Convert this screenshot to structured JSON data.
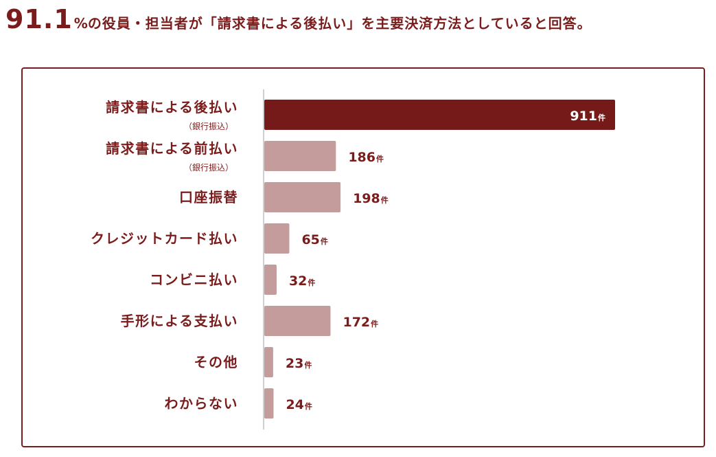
{
  "headline": {
    "number": "91.1",
    "unit": "%",
    "text": "の役員・担当者が「請求書による後払い」を主要決済方法としていると回答。"
  },
  "colors": {
    "accent": "#751919",
    "bar_primary": "#751919",
    "bar_secondary": "#c49c9c",
    "text": "#7a1c1c"
  },
  "chart_data": {
    "type": "bar",
    "orientation": "horizontal",
    "unit_suffix": "件",
    "categories": [
      {
        "label": "請求書による後払い",
        "sublabel": "（銀行振込）",
        "value": 911,
        "highlight": true
      },
      {
        "label": "請求書による前払い",
        "sublabel": "（銀行振込）",
        "value": 186,
        "highlight": false
      },
      {
        "label": "口座振替",
        "sublabel": "",
        "value": 198,
        "highlight": false
      },
      {
        "label": "クレジットカード払い",
        "sublabel": "",
        "value": 65,
        "highlight": false
      },
      {
        "label": "コンビニ払い",
        "sublabel": "",
        "value": 32,
        "highlight": false
      },
      {
        "label": "手形による支払い",
        "sublabel": "",
        "value": 172,
        "highlight": false
      },
      {
        "label": "その他",
        "sublabel": "",
        "value": 23,
        "highlight": false
      },
      {
        "label": "わからない",
        "sublabel": "",
        "value": 24,
        "highlight": false
      }
    ],
    "xlim": [
      0,
      911
    ],
    "grid": false,
    "legend": "none"
  }
}
